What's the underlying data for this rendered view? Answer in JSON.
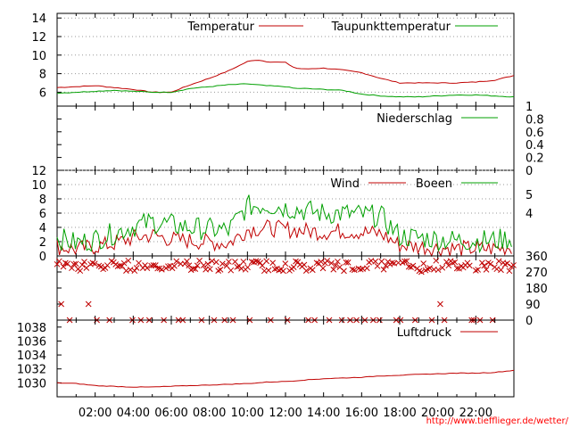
{
  "chart_data": [
    {
      "id": "temperature",
      "type": "line",
      "ylim": [
        4.5,
        14.5
      ],
      "yticks": [
        "6",
        "8",
        "10",
        "12",
        "14"
      ],
      "ytick_values": [
        6,
        8,
        10,
        12,
        14
      ],
      "grid": true,
      "legend": "top-right",
      "series": [
        {
          "name": "Temperatur",
          "color": "#c00000",
          "x": [
            0,
            1,
            2,
            3,
            4,
            5,
            6,
            7,
            8,
            9,
            10,
            10.5,
            11,
            12,
            12.5,
            13,
            14,
            15,
            16,
            17,
            18,
            19,
            20,
            21,
            22,
            23,
            24
          ],
          "y": [
            6.5,
            6.6,
            6.7,
            6.5,
            6.3,
            6.0,
            6.0,
            6.8,
            7.5,
            8.3,
            9.3,
            9.5,
            9.3,
            9.2,
            8.6,
            8.5,
            8.6,
            8.4,
            8.1,
            7.5,
            7.0,
            7.0,
            7.0,
            7.0,
            7.1,
            7.3,
            7.8
          ]
        },
        {
          "name": "Taupunkttemperatur",
          "color": "#00a000",
          "x": [
            0,
            1,
            2,
            3,
            4,
            5,
            6,
            7,
            8,
            9,
            10,
            11,
            12,
            12.5,
            13,
            14,
            15,
            16,
            17,
            18,
            19,
            20,
            21,
            22,
            23,
            24
          ],
          "y": [
            5.9,
            6.0,
            6.1,
            6.2,
            6.1,
            6.0,
            6.0,
            6.4,
            6.6,
            6.8,
            6.9,
            6.7,
            6.6,
            6.4,
            6.4,
            6.3,
            6.2,
            5.8,
            5.6,
            5.5,
            5.5,
            5.6,
            5.7,
            5.7,
            5.6,
            5.5
          ]
        }
      ]
    },
    {
      "id": "precipitation",
      "type": "line",
      "ylim": [
        0,
        1
      ],
      "yticks": [
        "0",
        "0.2",
        "0.4",
        "0.6",
        "0.8",
        "1"
      ],
      "ytick_values": [
        0,
        0.2,
        0.4,
        0.6,
        0.8,
        1
      ],
      "legend": "top-right",
      "series": [
        {
          "name": "Niederschlag",
          "color": "#00a000",
          "x": [
            0,
            24
          ],
          "y": [
            0,
            0
          ]
        }
      ]
    },
    {
      "id": "wind",
      "type": "line",
      "ylim": [
        0,
        12
      ],
      "yticks": [
        "0",
        "2",
        "4",
        "6",
        "8",
        "10",
        "12"
      ],
      "ytick_values": [
        0,
        2,
        4,
        6,
        8,
        10,
        12
      ],
      "right_ticks": [
        "4",
        "5"
      ],
      "right_tick_values": [
        6,
        8.6
      ],
      "grid": true,
      "legend": "top-right",
      "series": [
        {
          "name": "Wind",
          "color": "#c00000",
          "x": [
            0,
            1,
            2,
            3,
            4,
            5,
            6,
            7,
            8,
            9,
            10,
            11,
            12,
            13,
            14,
            15,
            16,
            17,
            18,
            19,
            20,
            21,
            22,
            23,
            24
          ],
          "y": [
            1.2,
            0.8,
            1.2,
            1.6,
            2.4,
            2.8,
            2.2,
            2.0,
            1.8,
            1.6,
            3.6,
            3.8,
            3.6,
            3.4,
            3.2,
            3.4,
            3.2,
            3.0,
            1.4,
            1.2,
            1.0,
            0.9,
            0.9,
            0.9,
            1.2
          ]
        },
        {
          "name": "Boeen",
          "color": "#00a000",
          "x": [
            0,
            1,
            2,
            3,
            4,
            5,
            6,
            7,
            8,
            9,
            10,
            11,
            12,
            13,
            14,
            15,
            16,
            17,
            18,
            19,
            20,
            21,
            22,
            23,
            24
          ],
          "y": [
            2.4,
            1.6,
            2.2,
            3.0,
            4.0,
            4.6,
            4.2,
            3.8,
            3.6,
            3.4,
            6.8,
            7.0,
            6.6,
            6.2,
            5.8,
            5.8,
            5.6,
            5.4,
            2.6,
            2.4,
            2.2,
            2.0,
            2.0,
            2.0,
            2.4
          ]
        }
      ]
    },
    {
      "id": "wind-direction",
      "type": "scatter",
      "ylim": [
        0,
        360
      ],
      "yticks": [
        "0",
        "90",
        "180",
        "270",
        "360"
      ],
      "ytick_values": [
        0,
        90,
        180,
        270,
        360
      ],
      "series": [
        {
          "color": "#c00000",
          "mean_y": 305,
          "clusters_y": [
            0,
            90,
            180,
            270,
            305,
            330,
            360
          ]
        }
      ]
    },
    {
      "id": "pressure",
      "type": "line",
      "ylim": [
        1028,
        1039
      ],
      "yticks": [
        "1030",
        "1032",
        "1034",
        "1036",
        "1038"
      ],
      "ytick_values": [
        1030,
        1032,
        1034,
        1036,
        1038
      ],
      "legend": "top-right",
      "series": [
        {
          "name": "Luftdruck",
          "color": "#c00000",
          "x": [
            0,
            1,
            2,
            3,
            4,
            5,
            6,
            7,
            8,
            9,
            10,
            11,
            12,
            13,
            14,
            15,
            16,
            17,
            18,
            19,
            20,
            21,
            22,
            23,
            24
          ],
          "y": [
            1030.0,
            1029.9,
            1029.6,
            1029.5,
            1029.4,
            1029.4,
            1029.5,
            1029.6,
            1029.7,
            1029.8,
            1029.9,
            1030.1,
            1030.2,
            1030.4,
            1030.6,
            1030.7,
            1030.8,
            1031.0,
            1031.1,
            1031.2,
            1031.3,
            1031.4,
            1031.4,
            1031.5,
            1031.8
          ]
        }
      ]
    }
  ],
  "x_axis": {
    "labels": [
      "02:00",
      "04:00",
      "06:00",
      "08:00",
      "10:00",
      "12:00",
      "14:00",
      "16:00",
      "18:00",
      "20:00",
      "22:00"
    ],
    "hours": [
      2,
      4,
      6,
      8,
      10,
      12,
      14,
      16,
      18,
      20,
      22
    ],
    "range": [
      0,
      24
    ]
  },
  "credit": "http://www.tiefflieger.de/wetter/"
}
